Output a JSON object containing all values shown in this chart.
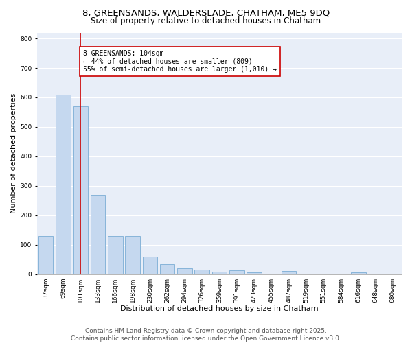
{
  "title1": "8, GREENSANDS, WALDERSLADE, CHATHAM, ME5 9DQ",
  "title2": "Size of property relative to detached houses in Chatham",
  "xlabel": "Distribution of detached houses by size in Chatham",
  "ylabel": "Number of detached properties",
  "categories": [
    "37sqm",
    "69sqm",
    "101sqm",
    "133sqm",
    "166sqm",
    "198sqm",
    "230sqm",
    "262sqm",
    "294sqm",
    "326sqm",
    "359sqm",
    "391sqm",
    "423sqm",
    "455sqm",
    "487sqm",
    "519sqm",
    "551sqm",
    "584sqm",
    "616sqm",
    "648sqm",
    "680sqm"
  ],
  "values": [
    130,
    610,
    570,
    270,
    130,
    130,
    60,
    35,
    20,
    15,
    8,
    12,
    5,
    2,
    10,
    2,
    1,
    0,
    5,
    1,
    1
  ],
  "bar_color": "#c5d8ef",
  "bar_edgecolor": "#7aadd4",
  "bar_linewidth": 0.6,
  "vline_x": 2,
  "vline_color": "#cc0000",
  "vline_linewidth": 1.2,
  "annotation_text": "8 GREENSANDS: 104sqm\n← 44% of detached houses are smaller (809)\n55% of semi-detached houses are larger (1,010) →",
  "annotation_box_edgecolor": "#cc0000",
  "annotation_box_facecolor": "white",
  "annotation_fontsize": 7,
  "ylim": [
    0,
    820
  ],
  "yticks": [
    0,
    100,
    200,
    300,
    400,
    500,
    600,
    700,
    800
  ],
  "background_color": "#e8eef8",
  "grid_color": "white",
  "footer_text": "Contains HM Land Registry data © Crown copyright and database right 2025.\nContains public sector information licensed under the Open Government Licence v3.0.",
  "title_fontsize": 9.5,
  "subtitle_fontsize": 8.5,
  "xlabel_fontsize": 8,
  "ylabel_fontsize": 8,
  "tick_fontsize": 6.5,
  "footer_fontsize": 6.5
}
